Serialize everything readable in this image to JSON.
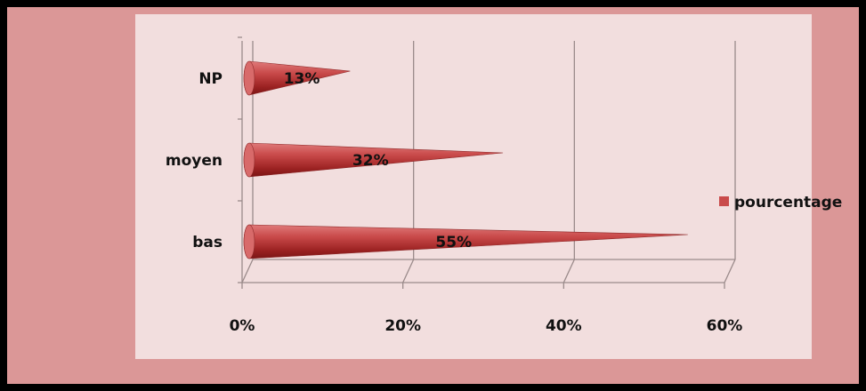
{
  "chart_data": {
    "type": "bar",
    "orientation": "horizontal",
    "style": "3d-cone",
    "categories": [
      "NP",
      "moyen",
      "bas"
    ],
    "series": [
      {
        "name": "pourcentage",
        "values": [
          13,
          32,
          55
        ],
        "color": "#c94a4a"
      }
    ],
    "data_labels": [
      "13%",
      "32%",
      "55%"
    ],
    "x_ticks": [
      "0%",
      "20%",
      "40%",
      "60%"
    ],
    "xlim": [
      0,
      60
    ],
    "grid": true,
    "legend": "right"
  },
  "colors": {
    "outer_background": "#db9797",
    "plot_background": "#f2dede",
    "bar": "#c94a4a"
  }
}
